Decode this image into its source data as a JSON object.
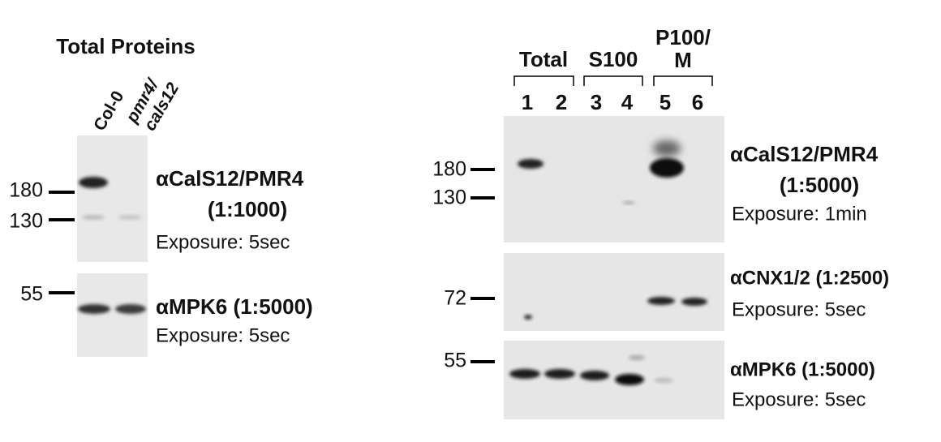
{
  "left_panel": {
    "title": "Total Proteins",
    "lanes": [
      [
        "Col-0"
      ],
      [
        "pmr4/",
        "cals12"
      ]
    ],
    "blots": [
      {
        "markers": [
          "180",
          "130"
        ],
        "antibody": [
          "αCalS12/PMR4",
          "(1:1000)"
        ],
        "exposure": "Exposure: 5sec"
      },
      {
        "markers": [
          "55"
        ],
        "antibody": [
          "αMPK6 (1:5000)"
        ],
        "exposure": "Exposure: 5sec"
      }
    ]
  },
  "right_panel": {
    "groups": [
      [
        "Total"
      ],
      [
        "S100"
      ],
      [
        "P100/",
        "M"
      ]
    ],
    "lanes": [
      "1",
      "2",
      "3",
      "4",
      "5",
      "6"
    ],
    "blots": [
      {
        "markers": [
          "180",
          "130"
        ],
        "antibody": [
          "αCalS12/PMR4",
          "(1:5000)"
        ],
        "exposure": "Exposure: 1min"
      },
      {
        "markers": [
          "72"
        ],
        "antibody": [
          "αCNX1/2 (1:2500)"
        ],
        "exposure": "Exposure: 5sec"
      },
      {
        "markers": [
          "55"
        ],
        "antibody": [
          "αMPK6 (1:5000)"
        ],
        "exposure": "Exposure: 5sec"
      }
    ]
  }
}
